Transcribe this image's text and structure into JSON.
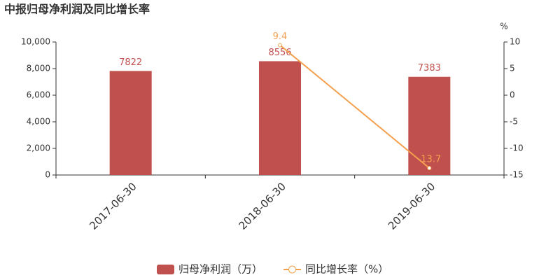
{
  "chart_data": {
    "type": "bar",
    "title": "中报归母净利润及同比增长率",
    "categories": [
      "2017-06-30",
      "2018-06-30",
      "2019-06-30"
    ],
    "series": [
      {
        "name": "归母净利润（万）",
        "type": "bar",
        "color": "#c0504d",
        "values": [
          7822,
          8556,
          7383
        ]
      },
      {
        "name": "同比增长率（%）",
        "type": "line",
        "axis": "y2",
        "color": "#f5a04e",
        "values": [
          null,
          9.4,
          -13.7
        ]
      }
    ],
    "ylim": [
      0,
      10000
    ],
    "yticks": [
      0,
      {
        "value": 2000,
        "label": "2,000"
      },
      {
        "value": 4000,
        "label": "4,000"
      },
      {
        "value": 6000,
        "label": "6,000"
      },
      {
        "value": 8000,
        "label": "8,000"
      },
      {
        "value": 10000,
        "label": "10,000"
      }
    ],
    "y2lim": [
      -15,
      10
    ],
    "y2ticks": [
      -15,
      -10,
      -5,
      0,
      5,
      10
    ],
    "y2label": "%",
    "legend": "bottom"
  }
}
